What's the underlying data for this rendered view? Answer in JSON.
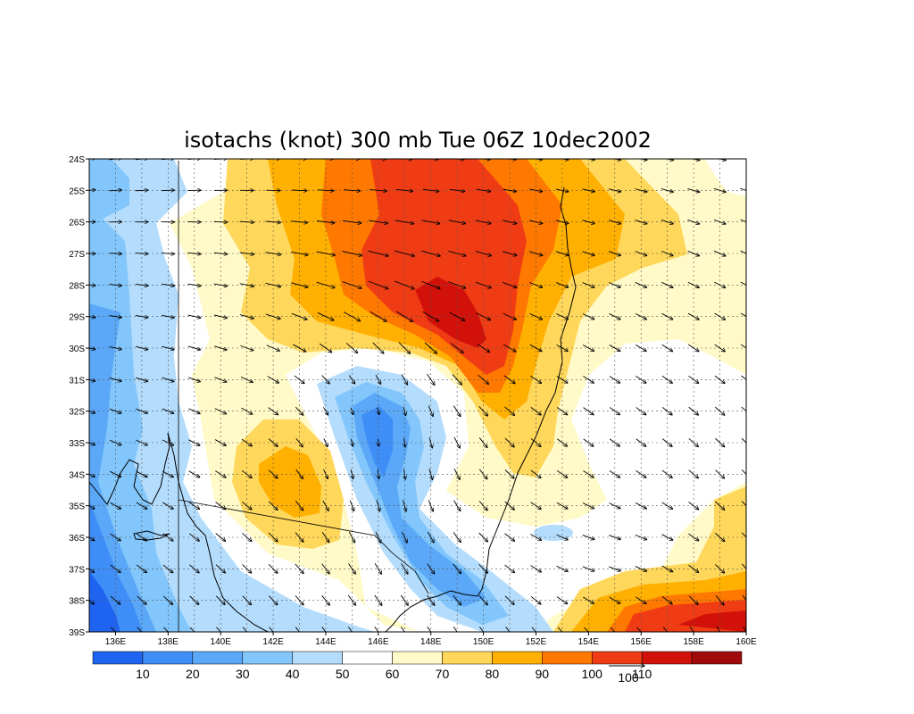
{
  "title": "isotachs (knot) 300 mb Tue 06Z 10dec2002",
  "lat_labels": [
    "24S",
    "25S",
    "26S",
    "27S",
    "28S",
    "29S",
    "30S",
    "31S",
    "32S",
    "33S",
    "34S",
    "35S",
    "36S",
    "37S",
    "38S",
    "39S"
  ],
  "lon_labels": [
    "136E",
    "138E",
    "140E",
    "142E",
    "144E",
    "146E",
    "148E",
    "150E",
    "152E",
    "154E",
    "156E",
    "158E",
    "160E"
  ],
  "colorbar": {
    "labels": [
      "10",
      "20",
      "30",
      "40",
      "50",
      "60",
      "70",
      "80",
      "90",
      "100",
      "110"
    ],
    "colors": [
      "#1f64f0",
      "#3f8ef7",
      "#5aa8f7",
      "#82c6fb",
      "#b4dcfc",
      "#ffffff",
      "#fffac8",
      "#ffd75a",
      "#ffb000",
      "#ff7800",
      "#f03c14",
      "#d2120a",
      "#a00a0a"
    ]
  },
  "reference_vector": "100",
  "colors": {
    "level_0": "#1f64f0",
    "level_10": "#3f8ef7",
    "level_20": "#5aa8f7",
    "level_30": "#82c6fb",
    "level_40": "#b4dcfc",
    "level_50": "#ffffff",
    "level_60": "#fffac8",
    "level_70": "#ffd75a",
    "level_80": "#ffb000",
    "level_90": "#ff7800",
    "level_100": "#f03c14",
    "level_110": "#d2120a"
  }
}
